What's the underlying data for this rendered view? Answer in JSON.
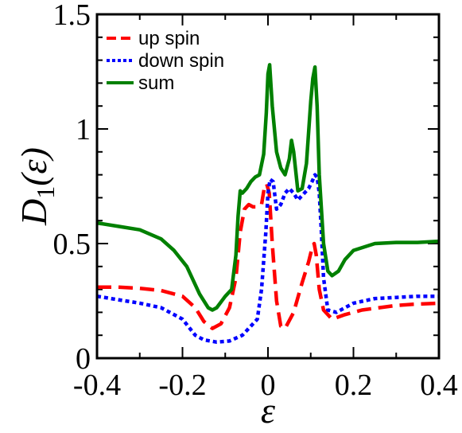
{
  "chart_data": {
    "type": "line",
    "title": "",
    "xlabel": "ε",
    "ylabel": "D_1(ε)",
    "ylabel_main": "D",
    "ylabel_sub": "1",
    "ylabel_arg": "(ε)",
    "xlim": [
      -0.4,
      0.4
    ],
    "ylim": [
      0,
      1.5
    ],
    "xticks": [
      -0.4,
      -0.2,
      0,
      0.2,
      0.4
    ],
    "xtick_labels": [
      "-0.4",
      "-0.2",
      "0",
      "0.2",
      "0.4"
    ],
    "yticks": [
      0,
      0.5,
      1,
      1.5
    ],
    "ytick_labels": [
      "0",
      "0.5",
      "1",
      "1.5"
    ],
    "grid": false,
    "legend_position": "top-left",
    "series": [
      {
        "name": "up spin",
        "color": "#ff0000",
        "style": "dashed",
        "x": [
          -0.4,
          -0.35,
          -0.3,
          -0.25,
          -0.2,
          -0.17,
          -0.15,
          -0.13,
          -0.11,
          -0.09,
          -0.075,
          -0.065,
          -0.055,
          -0.045,
          -0.035,
          -0.025,
          -0.015,
          -0.008,
          -0.003,
          0.003,
          0.01,
          0.02,
          0.03,
          0.04,
          0.06,
          0.08,
          0.095,
          0.103,
          0.108,
          0.113,
          0.12,
          0.13,
          0.15,
          0.18,
          0.22,
          0.26,
          0.3,
          0.34,
          0.4
        ],
        "y": [
          0.31,
          0.31,
          0.305,
          0.295,
          0.27,
          0.22,
          0.16,
          0.13,
          0.15,
          0.22,
          0.35,
          0.55,
          0.65,
          0.67,
          0.66,
          0.66,
          0.67,
          0.75,
          0.76,
          0.72,
          0.5,
          0.25,
          0.14,
          0.13,
          0.2,
          0.33,
          0.42,
          0.48,
          0.5,
          0.45,
          0.3,
          0.21,
          0.17,
          0.19,
          0.21,
          0.22,
          0.23,
          0.235,
          0.24
        ]
      },
      {
        "name": "down spin",
        "color": "#0000ff",
        "style": "dotted",
        "x": [
          -0.4,
          -0.35,
          -0.3,
          -0.25,
          -0.2,
          -0.17,
          -0.15,
          -0.12,
          -0.09,
          -0.06,
          -0.04,
          -0.025,
          -0.015,
          -0.005,
          0.0,
          0.005,
          0.012,
          0.02,
          0.03,
          0.04,
          0.05,
          0.06,
          0.07,
          0.085,
          0.095,
          0.103,
          0.11,
          0.115,
          0.12,
          0.125,
          0.13,
          0.14,
          0.16,
          0.2,
          0.25,
          0.3,
          0.35,
          0.4
        ],
        "y": [
          0.27,
          0.255,
          0.24,
          0.22,
          0.17,
          0.1,
          0.08,
          0.07,
          0.075,
          0.1,
          0.14,
          0.17,
          0.3,
          0.55,
          0.72,
          0.78,
          0.77,
          0.65,
          0.67,
          0.72,
          0.74,
          0.72,
          0.69,
          0.72,
          0.74,
          0.77,
          0.8,
          0.79,
          0.72,
          0.55,
          0.35,
          0.21,
          0.2,
          0.24,
          0.26,
          0.265,
          0.27,
          0.27
        ]
      },
      {
        "name": "sum",
        "color": "#008000",
        "style": "solid",
        "x": [
          -0.4,
          -0.35,
          -0.3,
          -0.25,
          -0.22,
          -0.19,
          -0.16,
          -0.14,
          -0.13,
          -0.12,
          -0.1,
          -0.085,
          -0.075,
          -0.07,
          -0.065,
          -0.06,
          -0.05,
          -0.04,
          -0.03,
          -0.02,
          -0.01,
          -0.004,
          0.0,
          0.004,
          0.01,
          0.02,
          0.03,
          0.04,
          0.05,
          0.055,
          0.06,
          0.07,
          0.08,
          0.09,
          0.1,
          0.105,
          0.11,
          0.115,
          0.12,
          0.13,
          0.14,
          0.15,
          0.165,
          0.18,
          0.2,
          0.25,
          0.3,
          0.35,
          0.4
        ],
        "y": [
          0.59,
          0.575,
          0.56,
          0.52,
          0.47,
          0.4,
          0.28,
          0.22,
          0.21,
          0.22,
          0.27,
          0.3,
          0.45,
          0.62,
          0.73,
          0.72,
          0.74,
          0.77,
          0.79,
          0.8,
          0.89,
          1.07,
          1.24,
          1.28,
          1.1,
          0.9,
          0.83,
          0.8,
          0.87,
          0.95,
          0.9,
          0.73,
          0.74,
          0.85,
          1.12,
          1.22,
          1.27,
          1.1,
          0.8,
          0.5,
          0.38,
          0.36,
          0.38,
          0.43,
          0.47,
          0.5,
          0.505,
          0.505,
          0.51
        ]
      }
    ]
  }
}
